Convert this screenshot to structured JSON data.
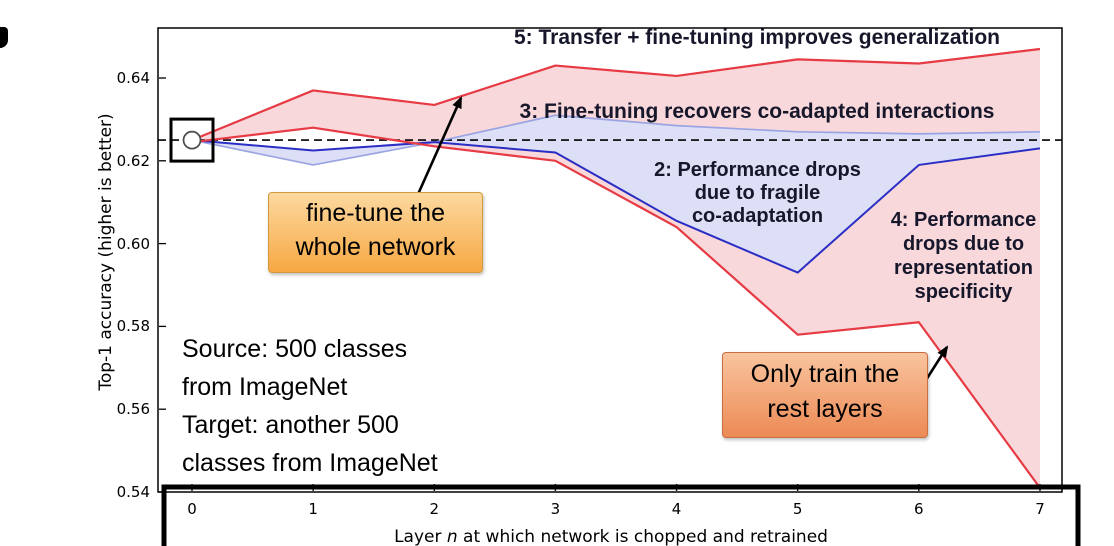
{
  "axis": {
    "ylabel": "Top-1 accuracy (higher is better)",
    "xlabel_prefix": "Layer ",
    "xlabel_var": "n",
    "xlabel_suffix": " at which network is chopped and retrained"
  },
  "annotations": {
    "label_5": "5: Transfer + fine-tuning improves generalization",
    "label_3": "3: Fine-tuning recovers co-adapted interactions",
    "label_2": "2: Performance drops\ndue to fragile\nco-adaptation",
    "label_4": "4: Performance\ndrops due to\nrepresentation\nspecificity",
    "callout_finetune": "fine-tune the\nwhole network",
    "callout_onlytrain": "Only train the\nrest layers",
    "source_note": "Source: 500 classes\nfrom ImageNet\nTarget: another 500\nclasses from ImageNet"
  },
  "colors": {
    "red_line": "#e63b44",
    "pink_band": "#f8d8da",
    "dark_blue_line": "#2a2ec4",
    "light_blue_line": "#9aa4e2",
    "blue_band": "#dcdff6",
    "baseline": "#000000",
    "callout_finetune_top": "#fcd9a0",
    "callout_finetune_bottom": "#f7a843",
    "callout_onlytrain_top": "#f9c49e",
    "callout_onlytrain_bottom": "#ec8a55"
  },
  "chart_data": {
    "type": "line",
    "title": "",
    "xlabel": "Layer n at which network is chopped and retrained",
    "ylabel": "Top-1 accuracy (higher is better)",
    "x": [
      0,
      1,
      2,
      3,
      4,
      5,
      6,
      7
    ],
    "x_tick_labels": [
      "0",
      "1",
      "2",
      "3",
      "4",
      "5",
      "6",
      "7"
    ],
    "y_ticks": [
      0.54,
      0.56,
      0.58,
      0.6,
      0.62,
      0.64
    ],
    "y_tick_labels": [
      "0.54",
      "0.56",
      "0.58",
      "0.60",
      "0.62",
      "0.64"
    ],
    "xlim": [
      -0.28,
      7.18
    ],
    "ylim": [
      0.54,
      0.652
    ],
    "grid": false,
    "legend": "none",
    "baseline": {
      "value": 0.625,
      "style": "dashed",
      "color": "#000000"
    },
    "marker": {
      "x": 0,
      "y": 0.625,
      "shape": "open-circle",
      "note": "boxed start point, fine-tune the whole network"
    },
    "series": [
      {
        "name": "5: Transfer + fine-tuning improves generalization (upper red line)",
        "color": "#e63b44",
        "values": [
          0.625,
          0.637,
          0.6335,
          0.643,
          0.6405,
          0.6445,
          0.6435,
          0.647
        ]
      },
      {
        "name": "3: Fine-tuning recovers co-adapted interactions (upper light blue line)",
        "color": "#9aa4e2",
        "values": [
          0.625,
          0.619,
          0.6245,
          0.631,
          0.6285,
          0.627,
          0.6265,
          0.627
        ]
      },
      {
        "name": "2: Performance drops due to fragile co-adaptation (lower dark blue line)",
        "color": "#2a2ec4",
        "values": [
          0.625,
          0.6225,
          0.6245,
          0.622,
          0.6055,
          0.593,
          0.619,
          0.623
        ]
      },
      {
        "name": "4: Performance drops due to representation specificity (lower red line)",
        "color": "#e63b44",
        "values": [
          0.6245,
          0.628,
          0.6235,
          0.62,
          0.604,
          0.578,
          0.581,
          0.541
        ]
      }
    ],
    "bands": [
      {
        "between": [
          0,
          3
        ],
        "fill": "#f8d8da",
        "name": "red-transfer-band"
      },
      {
        "between": [
          1,
          2
        ],
        "fill": "#dcdff6",
        "name": "blue-selffer-band"
      }
    ]
  }
}
